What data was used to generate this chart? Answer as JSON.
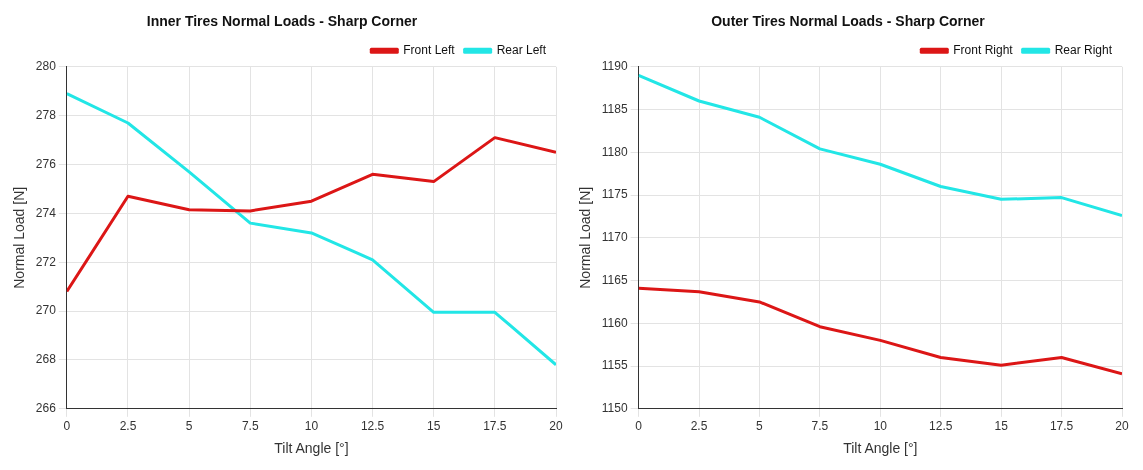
{
  "chart_data": [
    {
      "type": "line",
      "title": "Inner Tires Normal Loads - Sharp Corner",
      "xlabel": "Tilt Angle [°]",
      "ylabel": "Normal Load [N]",
      "x": [
        0,
        2.5,
        5,
        7.5,
        10,
        12.5,
        15,
        17.5,
        20
      ],
      "series": [
        {
          "name": "Front Left",
          "color": "#dc1616",
          "values": [
            270.8,
            274.7,
            274.15,
            274.1,
            274.5,
            275.6,
            275.3,
            277.1,
            276.5
          ]
        },
        {
          "name": "Rear Left",
          "color": "#22e6e6",
          "values": [
            278.9,
            277.7,
            275.7,
            273.6,
            273.2,
            272.1,
            269.95,
            269.95,
            267.8
          ]
        }
      ],
      "xlim": [
        0,
        20
      ],
      "xticks": [
        0,
        2.5,
        5,
        7.5,
        10,
        12.5,
        15,
        17.5,
        20
      ],
      "ylim": [
        266,
        280
      ],
      "yticks": [
        266,
        268,
        270,
        272,
        274,
        276,
        278,
        280
      ],
      "grid": true,
      "legend": "top right",
      "marker": "none",
      "line_style": "solid"
    },
    {
      "type": "line",
      "title": "Outer Tires Normal Loads - Sharp Corner",
      "xlabel": "Tilt Angle [°]",
      "ylabel": "Normal Load [N]",
      "x": [
        0,
        2.5,
        5,
        7.5,
        10,
        12.5,
        15,
        17.5,
        20
      ],
      "series": [
        {
          "name": "Front Right",
          "color": "#dc1616",
          "values": [
            1164.1,
            1163.7,
            1162.5,
            1159.6,
            1158.0,
            1156.0,
            1155.1,
            1156.0,
            1154.1
          ]
        },
        {
          "name": "Rear Right",
          "color": "#22e6e6",
          "values": [
            1189,
            1186,
            1184.1,
            1180.4,
            1178.6,
            1176.0,
            1174.5,
            1174.7,
            1172.6
          ]
        }
      ],
      "xlim": [
        0,
        20
      ],
      "xticks": [
        0,
        2.5,
        5,
        7.5,
        10,
        12.5,
        15,
        17.5,
        20
      ],
      "ylim": [
        1150,
        1190
      ],
      "yticks": [
        1150,
        1155,
        1160,
        1165,
        1170,
        1175,
        1180,
        1185,
        1190
      ],
      "grid": true,
      "legend": "top right",
      "marker": "none",
      "line_style": "solid"
    }
  ]
}
